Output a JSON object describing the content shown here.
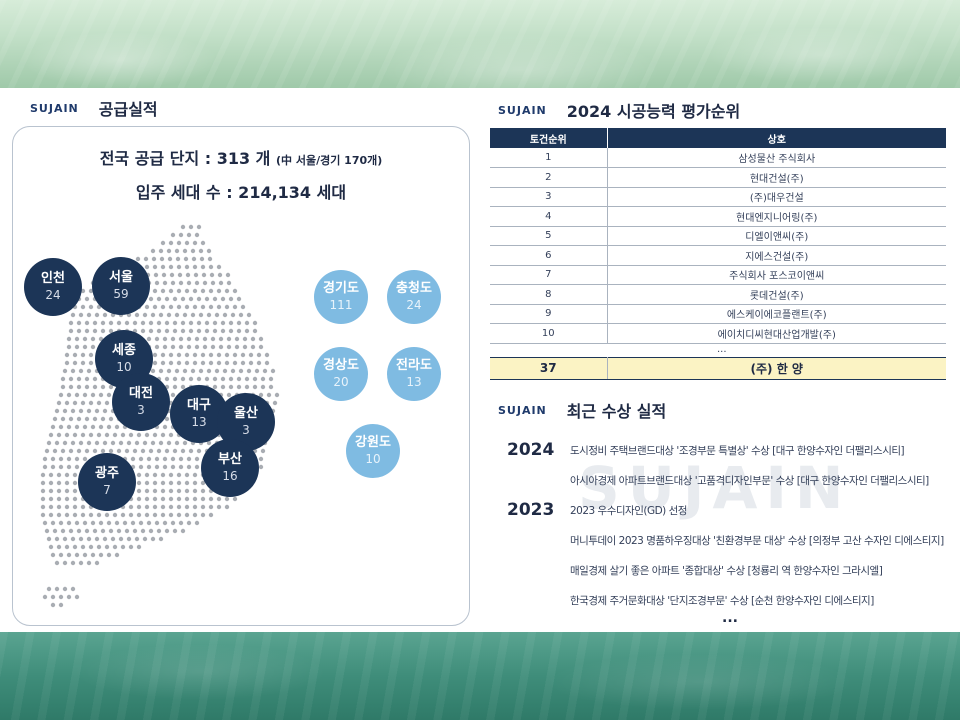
{
  "left": {
    "brand": "SUJAIN",
    "title": "공급실적",
    "stat_main": "전국 공급 단지 : 313 개",
    "stat_main_sub": "(中 서울/경기 170개)",
    "stat_households": "입주 세대 수 : 214,134 세대",
    "regions_on_map": [
      {
        "name": "인천",
        "count": "24"
      },
      {
        "name": "서울",
        "count": "59"
      },
      {
        "name": "세종",
        "count": "10"
      },
      {
        "name": "대전",
        "count": "3"
      },
      {
        "name": "대구",
        "count": "13"
      },
      {
        "name": "울산",
        "count": "3"
      },
      {
        "name": "부산",
        "count": "16"
      },
      {
        "name": "광주",
        "count": "7"
      }
    ],
    "regions_side": [
      {
        "name": "경기도",
        "count": "111"
      },
      {
        "name": "충청도",
        "count": "24"
      },
      {
        "name": "경상도",
        "count": "20"
      },
      {
        "name": "전라도",
        "count": "13"
      },
      {
        "name": "강원도",
        "count": "10"
      }
    ],
    "colors": {
      "dark": "#1c3557",
      "light": "#7fbbe2",
      "dot": "#a9adb3"
    }
  },
  "ranking": {
    "brand": "SUJAIN",
    "title": "2024 시공능력 평가순위",
    "col_rank": "토건순위",
    "col_company": "상호",
    "rows": [
      {
        "rank": "1",
        "company": "삼성물산 주식회사"
      },
      {
        "rank": "2",
        "company": "현대건설(주)"
      },
      {
        "rank": "3",
        "company": "(주)대우건설"
      },
      {
        "rank": "4",
        "company": "현대엔지니어링(주)"
      },
      {
        "rank": "5",
        "company": "디엘이앤씨(주)"
      },
      {
        "rank": "6",
        "company": "지에스건설(주)"
      },
      {
        "rank": "7",
        "company": "주식회사 포스코이앤씨"
      },
      {
        "rank": "8",
        "company": "롯데건설(주)"
      },
      {
        "rank": "9",
        "company": "에스케이에코플랜트(주)"
      },
      {
        "rank": "10",
        "company": "에이치디씨현대산업개발(주)"
      }
    ],
    "ellipsis": "...",
    "highlight": {
      "rank": "37",
      "company": "(주) 한 양"
    },
    "highlight_color": "#fbf3c4"
  },
  "awards": {
    "brand": "SUJAIN",
    "title": "최근 수상 실적",
    "watermark": "SUJAIN",
    "years": [
      "2024",
      "2023"
    ],
    "items": [
      "도시정비 주택브랜드대상 '조경부문 특별상' 수상 [대구 한양수자인 더팰리스시티]",
      "아시아경제 아파트브랜드대상 '고품격디자인부문' 수상 [대구 한양수자인 더팰리스시티]",
      "2023 우수디자인(GD) 선정",
      "머니투데이 2023 명품하우징대상 '친환경부문 대상' 수상 [의정부 고산 수자인 디에스티지]",
      "매일경제 살기 좋은 아파트 '종합대상' 수상 [청룡리 역 한양수자인 그라시엘]",
      "한국경제 주거문화대상 '단지조경부문' 수상 [순천 한양수자인 디에스티지]"
    ],
    "more": "..."
  }
}
